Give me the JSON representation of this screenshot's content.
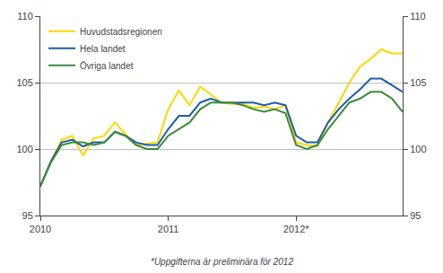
{
  "chart_data": {
    "type": "line",
    "categories": [
      "2010",
      null,
      null,
      null,
      null,
      null,
      null,
      null,
      null,
      null,
      null,
      null,
      "2011",
      null,
      null,
      null,
      null,
      null,
      null,
      null,
      null,
      null,
      null,
      null,
      "2012*",
      null,
      null,
      null,
      null,
      null,
      null,
      null,
      null,
      null,
      null
    ],
    "series": [
      {
        "name": "Huvudstadsregionen",
        "color": "#FFD700",
        "values": [
          97.2,
          99.1,
          100.7,
          101.0,
          99.5,
          100.8,
          101.0,
          102.0,
          101.1,
          100.3,
          100.4,
          100.5,
          103.0,
          104.4,
          103.3,
          104.7,
          104.1,
          103.5,
          103.4,
          103.4,
          103.1,
          103.2,
          103.0,
          103.3,
          100.5,
          100.3,
          100.2,
          102.0,
          103.5,
          105.0,
          106.2,
          106.8,
          107.5,
          107.2,
          107.2
        ]
      },
      {
        "name": "Hela landet",
        "color": "#1F5CA8",
        "values": [
          97.2,
          99.1,
          100.5,
          100.7,
          100.2,
          100.5,
          100.5,
          101.3,
          101.0,
          100.5,
          100.3,
          100.3,
          101.5,
          102.5,
          102.5,
          103.5,
          103.8,
          103.5,
          103.5,
          103.5,
          103.5,
          103.3,
          103.5,
          103.3,
          101.0,
          100.5,
          100.5,
          102.0,
          103.0,
          103.8,
          104.5,
          105.3,
          105.3,
          104.8,
          104.3
        ]
      },
      {
        "name": "Övriga landet",
        "color": "#3A8C3A",
        "values": [
          97.2,
          99.0,
          100.3,
          100.5,
          100.5,
          100.3,
          100.5,
          101.3,
          101.0,
          100.3,
          100.0,
          100.0,
          101.0,
          101.5,
          102.0,
          103.0,
          103.5,
          103.5,
          103.5,
          103.3,
          103.0,
          102.8,
          103.0,
          102.7,
          100.3,
          100.0,
          100.3,
          101.5,
          102.5,
          103.5,
          103.8,
          104.3,
          104.3,
          103.8,
          102.8
        ]
      }
    ],
    "ylim": [
      95,
      110
    ],
    "yticks": [
      95,
      100,
      105,
      110
    ],
    "y2lim": [
      95,
      110
    ],
    "y2ticks": [
      95,
      100,
      105,
      110
    ],
    "grid": true,
    "legend": "upper left",
    "annotations": [
      "*Uppgifterna är preliminära för 2012"
    ]
  }
}
